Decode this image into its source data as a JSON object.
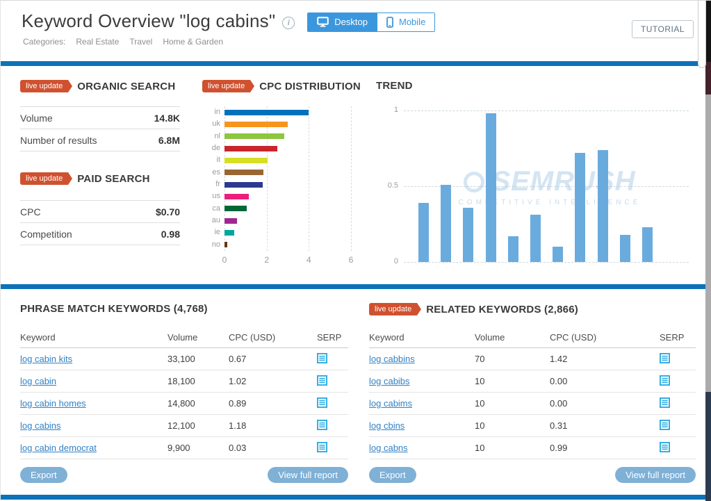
{
  "colors": {
    "accent_blue": "#0d72b8",
    "badge_orange": "#d0512f",
    "device_active_blue": "#3b97dd",
    "link_blue": "#3181c4",
    "button_blue": "#7fb0d6",
    "serp_icon_blue": "#29abe2",
    "trend_bar_blue": "#6aabdd"
  },
  "header": {
    "title": "Keyword Overview \"log cabins\"",
    "tutorial_label": "TUTORIAL",
    "categories_label": "Categories:",
    "categories": [
      "Real Estate",
      "Travel",
      "Home & Garden"
    ],
    "device_toggle": {
      "desktop_label": "Desktop",
      "mobile_label": "Mobile",
      "active": "Desktop"
    }
  },
  "badge_label": "live update",
  "organic_search": {
    "heading": "ORGANIC SEARCH",
    "rows": [
      {
        "label": "Volume",
        "value": "14.8K"
      },
      {
        "label": "Number of results",
        "value": "6.8M"
      }
    ]
  },
  "paid_search": {
    "heading": "PAID SEARCH",
    "rows": [
      {
        "label": "CPC",
        "value": "$0.70"
      },
      {
        "label": "Competition",
        "value": "0.98"
      }
    ]
  },
  "chart_data": [
    {
      "type": "bar",
      "orientation": "horizontal",
      "title": "CPC DISTRIBUTION",
      "categories": [
        "in",
        "uk",
        "nl",
        "de",
        "it",
        "es",
        "fr",
        "us",
        "ca",
        "au",
        "ie",
        "no"
      ],
      "values": [
        4.0,
        3.0,
        2.85,
        2.5,
        2.05,
        1.85,
        1.8,
        1.15,
        1.05,
        0.6,
        0.45,
        0.12
      ],
      "bar_colors": [
        "#0072bc",
        "#f7941e",
        "#8dc63f",
        "#c9252c",
        "#d7df23",
        "#996633",
        "#2b3990",
        "#ec1e79",
        "#006838",
        "#9e288f",
        "#00a79d",
        "#603913"
      ],
      "xlabel": "",
      "ylabel": "",
      "xlim": [
        0,
        6
      ],
      "xticks": [
        0,
        2,
        4,
        6
      ],
      "grid": "vertical-dashed"
    },
    {
      "type": "bar",
      "orientation": "vertical",
      "title": "TREND",
      "values": [
        0.39,
        0.51,
        0.36,
        0.98,
        0.17,
        0.31,
        0.1,
        0.72,
        0.74,
        0.18,
        0.23
      ],
      "x_tick_labels_visible": false,
      "ylim": [
        0,
        1
      ],
      "yticks": [
        0,
        0.5,
        1
      ],
      "grid": "horizontal-dashed",
      "bar_color": "#6aabdd"
    }
  ],
  "watermark": {
    "brand": "SEMRUSH",
    "tagline": "COMPETITIVE INTELLIGENCE"
  },
  "phrase_match": {
    "heading": "PHRASE MATCH KEYWORDS (4,768)",
    "columns": [
      "Keyword",
      "Volume",
      "CPC (USD)",
      "SERP"
    ],
    "rows": [
      {
        "keyword": "log cabin kits",
        "volume": "33,100",
        "cpc": "0.67"
      },
      {
        "keyword": "log cabin",
        "volume": "18,100",
        "cpc": "1.02"
      },
      {
        "keyword": "log cabin homes",
        "volume": "14,800",
        "cpc": "0.89"
      },
      {
        "keyword": "log cabins",
        "volume": "12,100",
        "cpc": "1.18"
      },
      {
        "keyword": "log cabin democrat",
        "volume": "9,900",
        "cpc": "0.03"
      }
    ],
    "export_label": "Export",
    "view_full_report_label": "View full report"
  },
  "related": {
    "heading": "RELATED KEYWORDS (2,866)",
    "columns": [
      "Keyword",
      "Volume",
      "CPC (USD)",
      "SERP"
    ],
    "rows": [
      {
        "keyword": "log cabbins",
        "volume": "70",
        "cpc": "1.42"
      },
      {
        "keyword": "log cabibs",
        "volume": "10",
        "cpc": "0.00"
      },
      {
        "keyword": "log cabims",
        "volume": "10",
        "cpc": "0.00"
      },
      {
        "keyword": "log cbins",
        "volume": "10",
        "cpc": "0.31"
      },
      {
        "keyword": "log cabns",
        "volume": "10",
        "cpc": "0.99"
      }
    ],
    "export_label": "Export",
    "view_full_report_label": "View full report"
  }
}
